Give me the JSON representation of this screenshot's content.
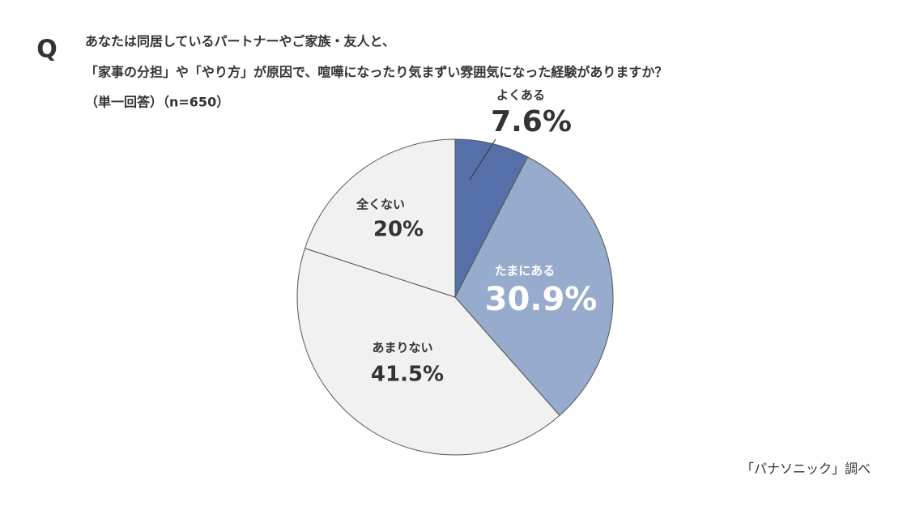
{
  "chart_data": {
    "type": "pie",
    "question_marker": "Q",
    "title_lines": [
      "あなたは同居しているパートナーやご家族・友人と、",
      "「家事の分担」や「やり方」が原因で、喧嘩になったり気まずい雰囲気になった経験がありますか？",
      "（単一回答）（n=650）"
    ],
    "categories": [
      "よくある",
      "たまにある",
      "あまりない",
      "全くない"
    ],
    "values": [
      7.6,
      30.9,
      41.5,
      20
    ],
    "value_labels": [
      "7.6%",
      "30.9%",
      "41.5%",
      "20%"
    ],
    "colors": [
      "#5570a8",
      "#97abcc",
      "#f1f1f1",
      "#f1f1f1"
    ],
    "source": "「パナソニック」調べ"
  }
}
